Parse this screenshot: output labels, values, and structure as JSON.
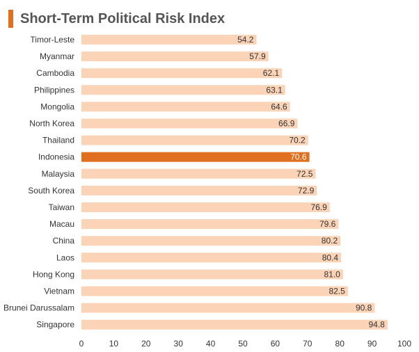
{
  "chart_data": {
    "type": "bar",
    "orientation": "horizontal",
    "title": "Short-Term Political Risk Index",
    "categories": [
      "Timor-Leste",
      "Myanmar",
      "Cambodia",
      "Philippines",
      "Mongolia",
      "North Korea",
      "Thailand",
      "Indonesia",
      "Malaysia",
      "South Korea",
      "Taiwan",
      "Macau",
      "China",
      "Laos",
      "Hong Kong",
      "Vietnam",
      "Brunei Darussalam",
      "Singapore"
    ],
    "values": [
      54.2,
      57.9,
      62.1,
      63.1,
      64.6,
      66.9,
      70.2,
      70.6,
      72.5,
      72.9,
      76.9,
      79.6,
      80.2,
      80.4,
      81.0,
      82.5,
      90.8,
      94.8
    ],
    "value_labels": [
      "54.2",
      "57.9",
      "62.1",
      "63.1",
      "64.6",
      "66.9",
      "70.2",
      "70.6",
      "72.5",
      "72.9",
      "76.9",
      "79.6",
      "80.2",
      "80.4",
      "81.0",
      "82.5",
      "90.8",
      "94.8"
    ],
    "highlight": "Indonesia",
    "xlim": [
      0,
      100
    ],
    "xticks": [
      0,
      10,
      20,
      30,
      40,
      50,
      60,
      70,
      80,
      90,
      100
    ],
    "grid": false,
    "colors": {
      "bar": "#fbd3b6",
      "highlight": "#e07020",
      "title_accent": "#e07020"
    }
  }
}
